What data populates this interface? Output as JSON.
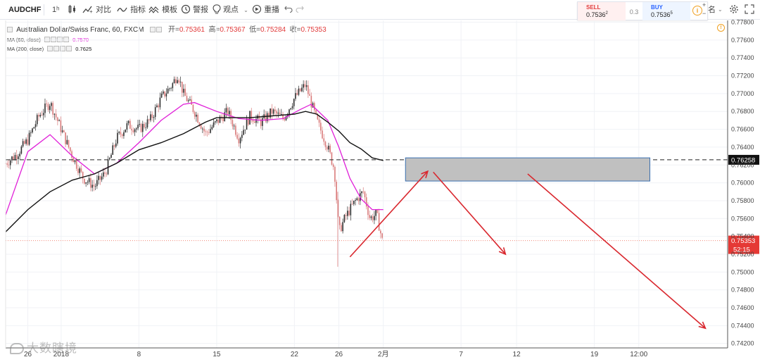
{
  "toolbar": {
    "symbol": "AUDCHF",
    "interval": "1ʰ",
    "compare": "对比",
    "indicators": "指标",
    "templates": "模板",
    "alert": "警报",
    "ideas": "观点",
    "replay": "重播",
    "right_label": "名",
    "icons": [
      "candles-icon",
      "compare-icon",
      "indicators-icon",
      "templates-icon",
      "alert-icon",
      "lightbulb-icon",
      "replay-icon",
      "undo-icon",
      "redo-icon",
      "gear-icon",
      "fullscreen-icon",
      "info-icon"
    ]
  },
  "trade": {
    "sell_label": "SELL",
    "sell_price": "0.7536",
    "sell_sup": "2",
    "spread": "0.3",
    "buy_label": "BUY",
    "buy_price": "0.7536",
    "buy_sup": "5",
    "plus": "+",
    "minus": "−"
  },
  "legend": {
    "title": "Australian Dollar/Swiss Franc, 60, FXCM",
    "open_label": "开=",
    "open": "0.75361",
    "high_label": "高=",
    "high": "0.75367",
    "low_label": "低=",
    "low": "0.75284",
    "close_label": "收=",
    "close": "0.75353",
    "ma60_label": "MA (60, close)",
    "ma60_value": "0.7570",
    "ma200_label": "MA (200, close)",
    "ma200_value": "0.7625"
  },
  "watermark": "大数瞎境",
  "colors": {
    "bull": "#2e2e2e",
    "bear": "#d97a7a",
    "ma60": "#e020d8",
    "ma200": "#111111",
    "arrow": "#d9272e",
    "box_fill": "#c0c0c0",
    "box_stroke": "#3a6fb0",
    "price_tag": "#e53935",
    "level_tag": "#111111"
  },
  "chart_data": {
    "type": "candlestick",
    "title": "Australian Dollar/Swiss Franc, 60, FXCM",
    "y_axis": {
      "ticks": [
        "0.77800",
        "0.77600",
        "0.77400",
        "0.77200",
        "0.77000",
        "0.76800",
        "0.76600",
        "0.76400",
        "0.76200",
        "0.76000",
        "0.75800",
        "0.75600",
        "0.75400",
        "0.75200",
        "0.75000",
        "0.74800",
        "0.74600",
        "0.74400",
        "0.74200"
      ],
      "range": [
        0.7415,
        0.7782
      ]
    },
    "x_axis": {
      "ticks": [
        "26",
        "2018",
        "8",
        "15",
        "22",
        "26",
        "2月",
        "7",
        "12",
        "19",
        "12:00"
      ],
      "tick_days": [
        -2,
        1,
        8,
        15,
        22,
        26,
        30,
        37,
        42,
        49,
        53
      ],
      "range_days": [
        -4,
        61
      ]
    },
    "candle_count": 240,
    "series_path": [
      {
        "d": -4,
        "p": 0.7622
      },
      {
        "d": -3,
        "p": 0.7632
      },
      {
        "d": -2,
        "p": 0.7648
      },
      {
        "d": -1,
        "p": 0.7675
      },
      {
        "d": 0,
        "p": 0.769
      },
      {
        "d": 1,
        "p": 0.766
      },
      {
        "d": 2,
        "p": 0.763
      },
      {
        "d": 3,
        "p": 0.7605
      },
      {
        "d": 4,
        "p": 0.7596
      },
      {
        "d": 5,
        "p": 0.7612
      },
      {
        "d": 6,
        "p": 0.765
      },
      {
        "d": 7,
        "p": 0.7665
      },
      {
        "d": 8,
        "p": 0.766
      },
      {
        "d": 9,
        "p": 0.767
      },
      {
        "d": 10,
        "p": 0.7695
      },
      {
        "d": 11,
        "p": 0.771
      },
      {
        "d": 11.5,
        "p": 0.7722
      },
      {
        "d": 12,
        "p": 0.77
      },
      {
        "d": 13,
        "p": 0.768
      },
      {
        "d": 14,
        "p": 0.7655
      },
      {
        "d": 15,
        "p": 0.7668
      },
      {
        "d": 16,
        "p": 0.768
      },
      {
        "d": 17,
        "p": 0.765
      },
      {
        "d": 18,
        "p": 0.7675
      },
      {
        "d": 19,
        "p": 0.7668
      },
      {
        "d": 20,
        "p": 0.768
      },
      {
        "d": 21,
        "p": 0.7672
      },
      {
        "d": 22,
        "p": 0.7695
      },
      {
        "d": 23,
        "p": 0.771
      },
      {
        "d": 24,
        "p": 0.767
      },
      {
        "d": 25,
        "p": 0.764
      },
      {
        "d": 25.6,
        "p": 0.7615
      },
      {
        "d": 26,
        "p": 0.7545
      },
      {
        "d": 26.6,
        "p": 0.7562
      },
      {
        "d": 27.5,
        "p": 0.758
      },
      {
        "d": 28.2,
        "p": 0.759
      },
      {
        "d": 28.8,
        "p": 0.756
      },
      {
        "d": 29.4,
        "p": 0.7565
      },
      {
        "d": 29.9,
        "p": 0.75353
      }
    ],
    "series": [
      {
        "name": "MA (60, close)",
        "color": "#e020d8",
        "points": [
          {
            "d": -4,
            "p": 0.7564
          },
          {
            "d": -2,
            "p": 0.7635
          },
          {
            "d": 0,
            "p": 0.7654
          },
          {
            "d": 2,
            "p": 0.763
          },
          {
            "d": 4,
            "p": 0.761
          },
          {
            "d": 6,
            "p": 0.7622
          },
          {
            "d": 8,
            "p": 0.7645
          },
          {
            "d": 10,
            "p": 0.767
          },
          {
            "d": 12,
            "p": 0.7688
          },
          {
            "d": 13,
            "p": 0.769
          },
          {
            "d": 15,
            "p": 0.768
          },
          {
            "d": 17,
            "p": 0.7672
          },
          {
            "d": 19,
            "p": 0.767
          },
          {
            "d": 21,
            "p": 0.7672
          },
          {
            "d": 22.5,
            "p": 0.7682
          },
          {
            "d": 23.5,
            "p": 0.7688
          },
          {
            "d": 25,
            "p": 0.767
          },
          {
            "d": 26,
            "p": 0.764
          },
          {
            "d": 27,
            "p": 0.7605
          },
          {
            "d": 28,
            "p": 0.7582
          },
          {
            "d": 29,
            "p": 0.757
          },
          {
            "d": 30,
            "p": 0.757
          }
        ]
      },
      {
        "name": "MA (200, close)",
        "color": "#111111",
        "points": [
          {
            "d": -4,
            "p": 0.7545
          },
          {
            "d": -2,
            "p": 0.757
          },
          {
            "d": 0,
            "p": 0.759
          },
          {
            "d": 2,
            "p": 0.7603
          },
          {
            "d": 4,
            "p": 0.761
          },
          {
            "d": 6,
            "p": 0.7622
          },
          {
            "d": 8,
            "p": 0.7637
          },
          {
            "d": 10,
            "p": 0.7645
          },
          {
            "d": 12,
            "p": 0.7655
          },
          {
            "d": 14,
            "p": 0.7668
          },
          {
            "d": 15,
            "p": 0.7673
          },
          {
            "d": 18,
            "p": 0.7673
          },
          {
            "d": 20,
            "p": 0.7675
          },
          {
            "d": 22,
            "p": 0.7677
          },
          {
            "d": 23,
            "p": 0.768
          },
          {
            "d": 24,
            "p": 0.7677
          },
          {
            "d": 25,
            "p": 0.7668
          },
          {
            "d": 26,
            "p": 0.7658
          },
          {
            "d": 27,
            "p": 0.7645
          },
          {
            "d": 28,
            "p": 0.7638
          },
          {
            "d": 29,
            "p": 0.7628
          },
          {
            "d": 30,
            "p": 0.7625
          }
        ]
      }
    ],
    "current_price": {
      "value": 0.75353,
      "label": "0.75353",
      "countdown": "52:15"
    },
    "level_line": {
      "value": 0.76258,
      "label": "0.76258"
    },
    "box_zone": {
      "d_start": 32,
      "d_end": 54,
      "p_low": 0.7602,
      "p_high": 0.7628
    },
    "arrows": [
      {
        "from": {
          "d": 27,
          "p": 0.7517
        },
        "to": {
          "d": 34,
          "p": 0.7613
        }
      },
      {
        "from": {
          "d": 34.5,
          "p": 0.7612
        },
        "to": {
          "d": 41,
          "p": 0.752
        }
      },
      {
        "from": {
          "d": 43,
          "p": 0.761
        },
        "to": {
          "d": 59,
          "p": 0.7437
        }
      }
    ],
    "grid": true
  }
}
